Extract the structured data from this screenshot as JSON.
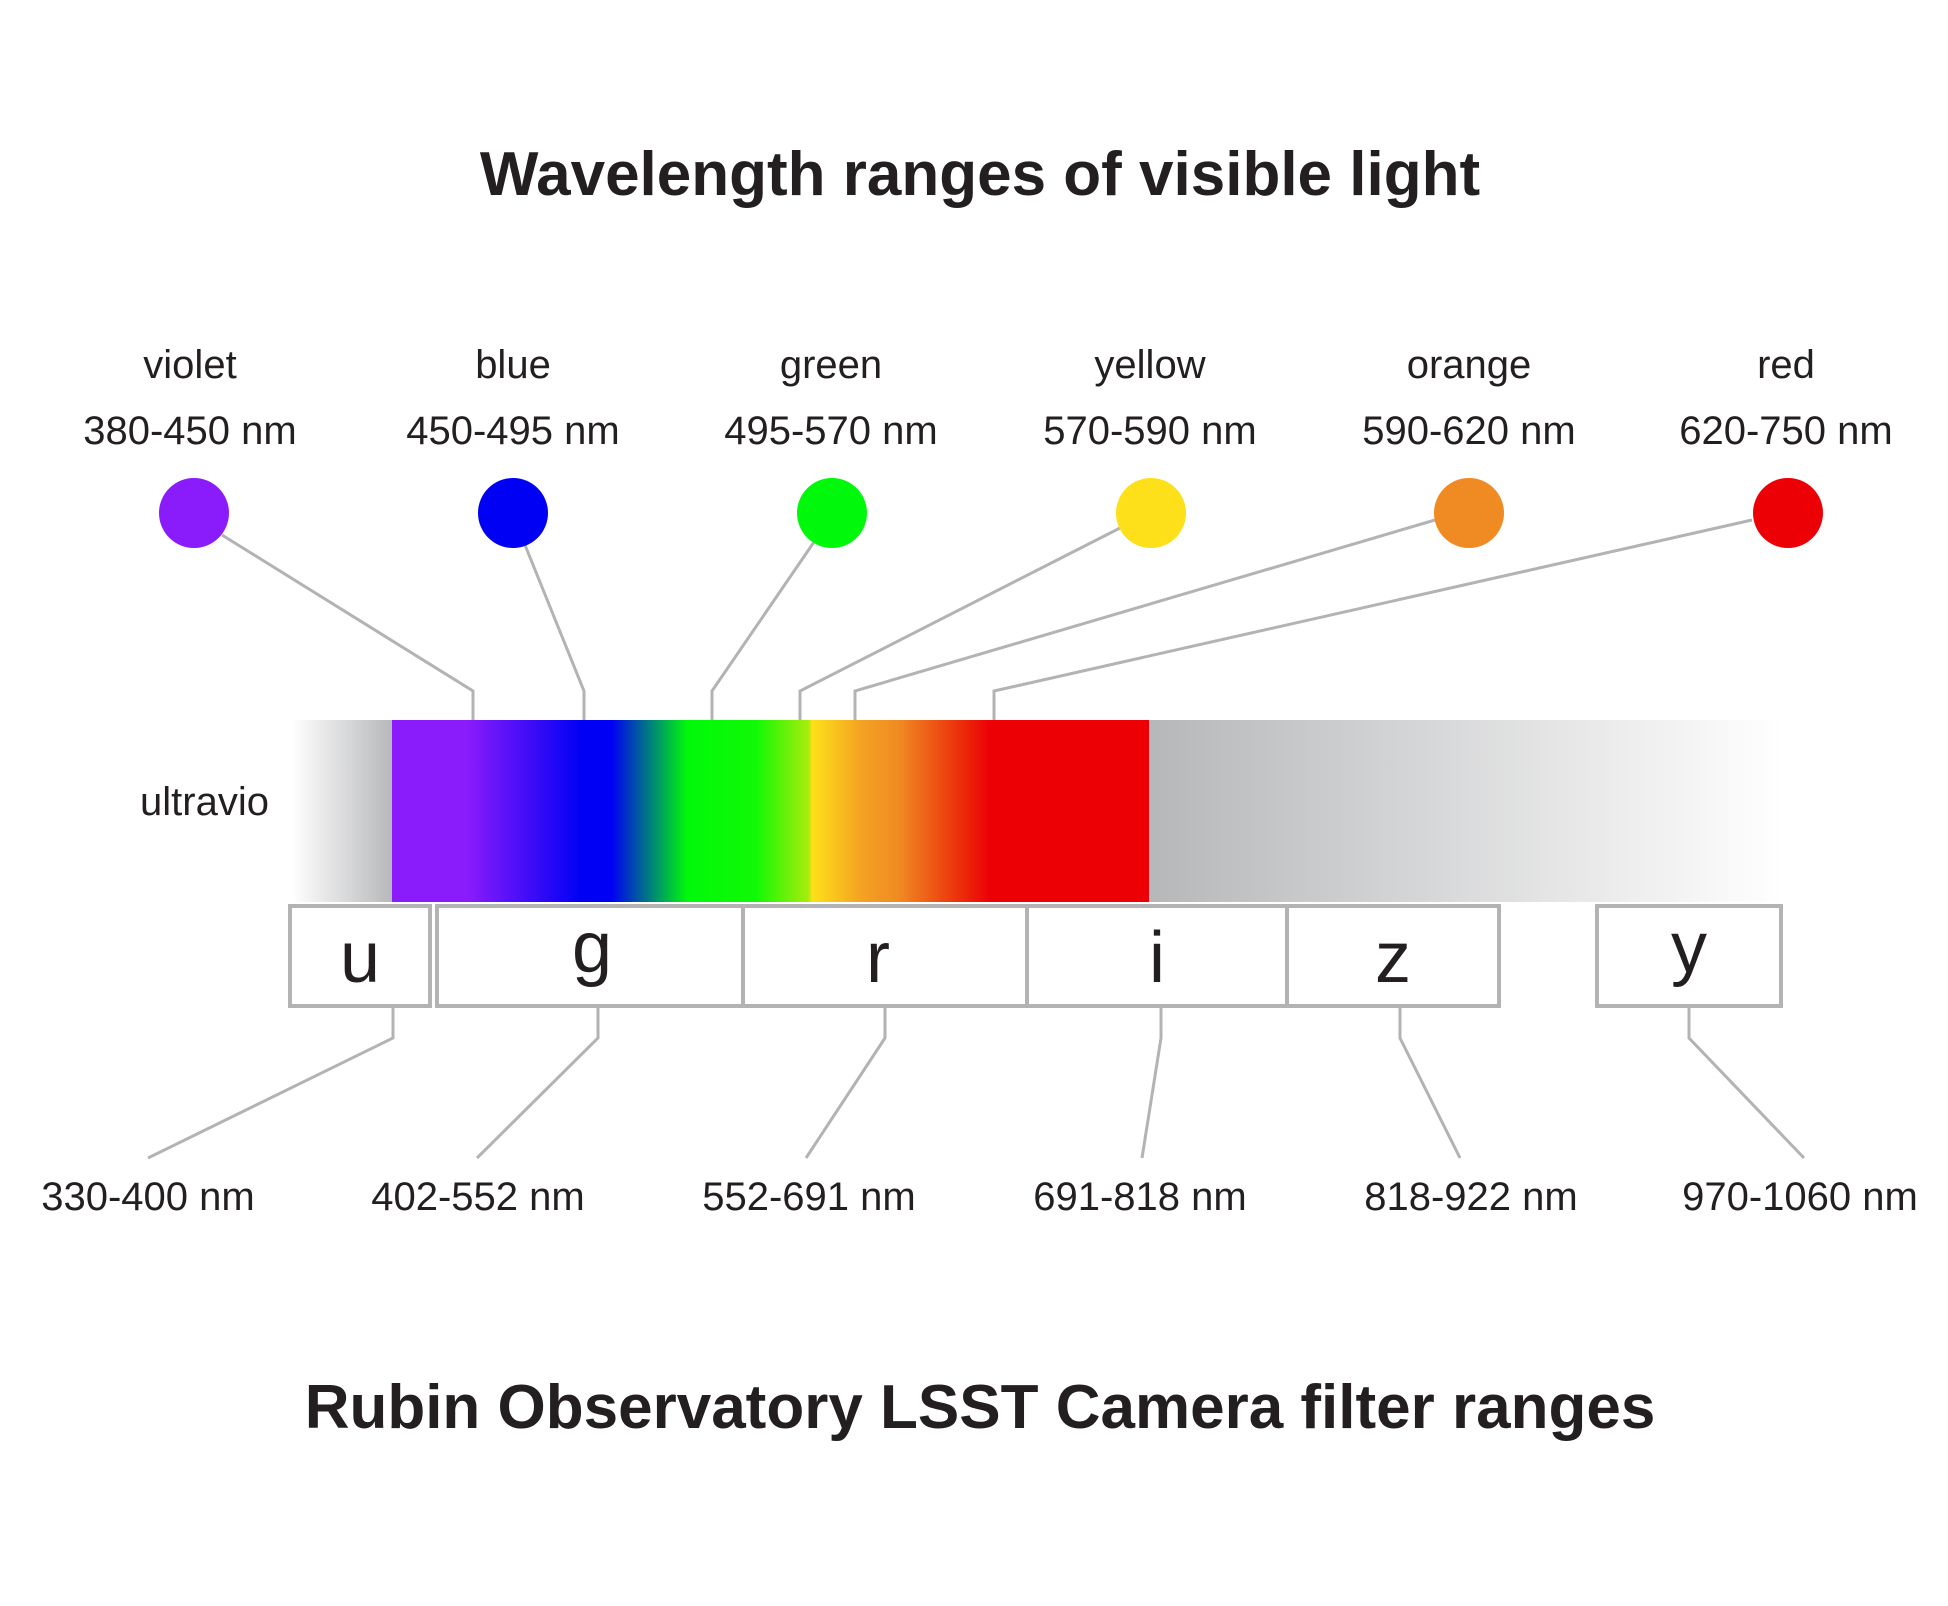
{
  "title_top": "Wavelength ranges of visible light",
  "title_bottom": "Rubin Observatory LSST Camera filter ranges",
  "uv_label": "ultravio",
  "colors": [
    {
      "name": "violet",
      "range": "380-450 nm",
      "hex": "#8a1bfb"
    },
    {
      "name": "blue",
      "range": "450-495 nm",
      "hex": "#0000f4"
    },
    {
      "name": "green",
      "range": "495-570 nm",
      "hex": "#00f90a"
    },
    {
      "name": "yellow",
      "range": "570-590 nm",
      "hex": "#fde01a"
    },
    {
      "name": "orange",
      "range": "590-620 nm",
      "hex": "#f08a23"
    },
    {
      "name": "red",
      "range": "620-750 nm",
      "hex": "#ec0006"
    }
  ],
  "filters": [
    {
      "letter": "u",
      "range": "330-400 nm"
    },
    {
      "letter": "g",
      "range": "402-552 nm"
    },
    {
      "letter": "r",
      "range": "552-691 nm"
    },
    {
      "letter": "i",
      "range": "691-818 nm"
    },
    {
      "letter": "z",
      "range": "818-922 nm"
    },
    {
      "letter": "y",
      "range": "970-1060 nm"
    }
  ],
  "styles": {
    "leader_color": "#b3b3b3",
    "text_color": "#231f20",
    "ir_gray": "#b6b7b9"
  }
}
